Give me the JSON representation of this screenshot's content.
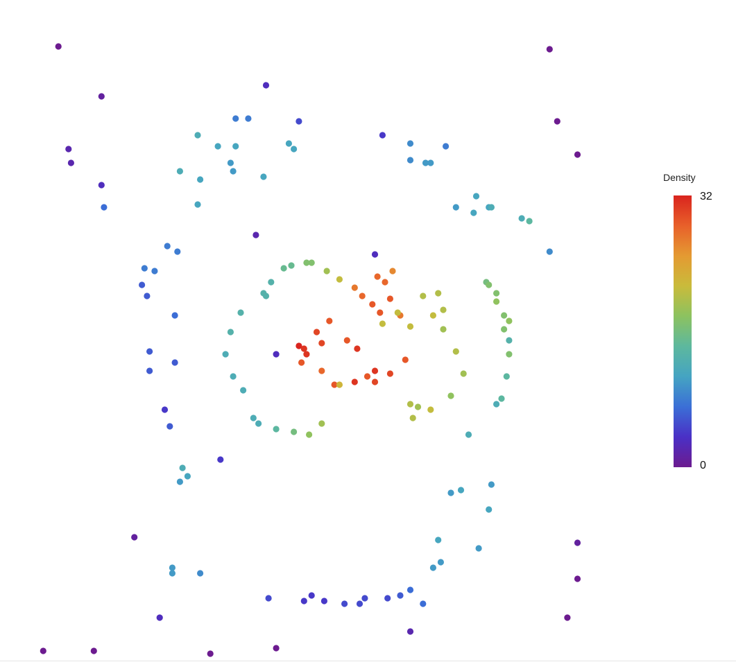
{
  "chart_data": {
    "type": "scatter",
    "title": "",
    "xlabel": "",
    "ylabel": "",
    "xlim": [
      -1.3,
      1.3
    ],
    "ylim": [
      -1.1,
      1.1
    ],
    "axes_visible": false,
    "grid": false,
    "color_by": "density",
    "colorbar": {
      "label": "Density",
      "min": 0,
      "max": 32,
      "min_label": "0",
      "max_label": "32",
      "placement": "right",
      "colors": [
        "#6c1b8f",
        "#4a30c6",
        "#3b6fd6",
        "#45a4c2",
        "#5db89e",
        "#8cc260",
        "#c9bb3b",
        "#e49a32",
        "#e8602a",
        "#d9241e"
      ]
    },
    "points": [
      {
        "x": -1.12,
        "y": 1.05,
        "d": 0
      },
      {
        "x": 0.82,
        "y": 1.04,
        "d": 0
      },
      {
        "x": -0.95,
        "y": 0.87,
        "d": 1
      },
      {
        "x": -0.3,
        "y": 0.91,
        "d": 3
      },
      {
        "x": 0.85,
        "y": 0.78,
        "d": 0
      },
      {
        "x": 0.93,
        "y": 0.66,
        "d": 0
      },
      {
        "x": -1.08,
        "y": 0.68,
        "d": 2
      },
      {
        "x": -1.07,
        "y": 0.63,
        "d": 2
      },
      {
        "x": -0.95,
        "y": 0.55,
        "d": 3
      },
      {
        "x": -0.94,
        "y": 0.47,
        "d": 7
      },
      {
        "x": -0.42,
        "y": 0.79,
        "d": 8
      },
      {
        "x": -0.37,
        "y": 0.79,
        "d": 8
      },
      {
        "x": -0.17,
        "y": 0.78,
        "d": 5
      },
      {
        "x": 0.16,
        "y": 0.73,
        "d": 4
      },
      {
        "x": 0.27,
        "y": 0.7,
        "d": 9
      },
      {
        "x": 0.41,
        "y": 0.69,
        "d": 8
      },
      {
        "x": -0.57,
        "y": 0.73,
        "d": 12
      },
      {
        "x": -0.49,
        "y": 0.69,
        "d": 11
      },
      {
        "x": -0.42,
        "y": 0.69,
        "d": 11
      },
      {
        "x": -0.19,
        "y": 0.68,
        "d": 11
      },
      {
        "x": -0.21,
        "y": 0.7,
        "d": 11
      },
      {
        "x": -0.64,
        "y": 0.6,
        "d": 12
      },
      {
        "x": -0.56,
        "y": 0.57,
        "d": 11
      },
      {
        "x": -0.31,
        "y": 0.58,
        "d": 11
      },
      {
        "x": -0.43,
        "y": 0.6,
        "d": 10
      },
      {
        "x": -0.57,
        "y": 0.48,
        "d": 11
      },
      {
        "x": -0.44,
        "y": 0.63,
        "d": 10
      },
      {
        "x": 0.27,
        "y": 0.64,
        "d": 9
      },
      {
        "x": 0.33,
        "y": 0.63,
        "d": 10
      },
      {
        "x": 0.35,
        "y": 0.63,
        "d": 10
      },
      {
        "x": 0.45,
        "y": 0.47,
        "d": 10
      },
      {
        "x": 0.52,
        "y": 0.45,
        "d": 11
      },
      {
        "x": 0.53,
        "y": 0.51,
        "d": 11
      },
      {
        "x": 0.58,
        "y": 0.47,
        "d": 11
      },
      {
        "x": 0.59,
        "y": 0.47,
        "d": 12
      },
      {
        "x": 0.71,
        "y": 0.43,
        "d": 12
      },
      {
        "x": 0.74,
        "y": 0.42,
        "d": 14
      },
      {
        "x": 0.82,
        "y": 0.31,
        "d": 9
      },
      {
        "x": -0.69,
        "y": 0.33,
        "d": 8
      },
      {
        "x": -0.65,
        "y": 0.31,
        "d": 8
      },
      {
        "x": -0.78,
        "y": 0.25,
        "d": 8
      },
      {
        "x": -0.74,
        "y": 0.24,
        "d": 8
      },
      {
        "x": -0.79,
        "y": 0.19,
        "d": 6
      },
      {
        "x": -0.77,
        "y": 0.15,
        "d": 6
      },
      {
        "x": -0.34,
        "y": 0.37,
        "d": 2
      },
      {
        "x": 0.13,
        "y": 0.3,
        "d": 3
      },
      {
        "x": -0.26,
        "y": -0.06,
        "d": 3
      },
      {
        "x": -0.66,
        "y": -0.09,
        "d": 6
      },
      {
        "x": -0.76,
        "y": -0.05,
        "d": 6
      },
      {
        "x": -0.66,
        "y": 0.08,
        "d": 7
      },
      {
        "x": 0.57,
        "y": 0.2,
        "d": 16
      },
      {
        "x": 0.58,
        "y": 0.19,
        "d": 17
      },
      {
        "x": 0.61,
        "y": 0.16,
        "d": 17
      },
      {
        "x": 0.61,
        "y": 0.13,
        "d": 18
      },
      {
        "x": 0.64,
        "y": 0.08,
        "d": 17
      },
      {
        "x": 0.66,
        "y": 0.06,
        "d": 18
      },
      {
        "x": 0.64,
        "y": 0.03,
        "d": 17
      },
      {
        "x": 0.66,
        "y": -0.06,
        "d": 17
      },
      {
        "x": 0.65,
        "y": -0.14,
        "d": 14
      },
      {
        "x": 0.63,
        "y": -0.22,
        "d": 14
      },
      {
        "x": 0.61,
        "y": -0.24,
        "d": 12
      },
      {
        "x": 0.5,
        "y": -0.35,
        "d": 12
      },
      {
        "x": 0.66,
        "y": -0.01,
        "d": 13
      },
      {
        "x": -0.76,
        "y": -0.12,
        "d": 6
      },
      {
        "x": -0.68,
        "y": -0.32,
        "d": 6
      },
      {
        "x": -0.7,
        "y": -0.26,
        "d": 4
      },
      {
        "x": -0.48,
        "y": -0.44,
        "d": 4
      },
      {
        "x": -0.63,
        "y": -0.47,
        "d": 12
      },
      {
        "x": -0.61,
        "y": -0.5,
        "d": 11
      },
      {
        "x": -0.64,
        "y": -0.52,
        "d": 10
      },
      {
        "x": 0.43,
        "y": -0.56,
        "d": 10
      },
      {
        "x": 0.47,
        "y": -0.55,
        "d": 11
      },
      {
        "x": 0.59,
        "y": -0.53,
        "d": 10
      },
      {
        "x": 0.58,
        "y": -0.62,
        "d": 11
      },
      {
        "x": 0.38,
        "y": -0.73,
        "d": 11
      },
      {
        "x": -0.82,
        "y": -0.72,
        "d": 1
      },
      {
        "x": 0.93,
        "y": -0.74,
        "d": 1
      },
      {
        "x": 0.93,
        "y": -0.87,
        "d": 0
      },
      {
        "x": -0.67,
        "y": -0.83,
        "d": 10
      },
      {
        "x": -0.67,
        "y": -0.85,
        "d": 10
      },
      {
        "x": -0.56,
        "y": -0.85,
        "d": 9
      },
      {
        "x": 0.39,
        "y": -0.81,
        "d": 10
      },
      {
        "x": 0.54,
        "y": -0.76,
        "d": 10
      },
      {
        "x": 0.36,
        "y": -0.83,
        "d": 10
      },
      {
        "x": -0.15,
        "y": -0.95,
        "d": 4
      },
      {
        "x": -0.07,
        "y": -0.95,
        "d": 4
      },
      {
        "x": 0.01,
        "y": -0.96,
        "d": 5
      },
      {
        "x": 0.07,
        "y": -0.96,
        "d": 5
      },
      {
        "x": 0.09,
        "y": -0.94,
        "d": 5
      },
      {
        "x": 0.18,
        "y": -0.94,
        "d": 5
      },
      {
        "x": 0.23,
        "y": -0.93,
        "d": 6
      },
      {
        "x": 0.27,
        "y": -0.91,
        "d": 7
      },
      {
        "x": 0.32,
        "y": -0.96,
        "d": 7
      },
      {
        "x": -0.29,
        "y": -0.94,
        "d": 5
      },
      {
        "x": -0.12,
        "y": -0.93,
        "d": 4
      },
      {
        "x": -0.72,
        "y": -1.01,
        "d": 3
      },
      {
        "x": 0.27,
        "y": -1.06,
        "d": 2
      },
      {
        "x": -1.18,
        "y": -1.13,
        "d": 0
      },
      {
        "x": -0.98,
        "y": -1.13,
        "d": 0
      },
      {
        "x": -0.52,
        "y": -1.14,
        "d": 0
      },
      {
        "x": -0.26,
        "y": -1.12,
        "d": 0
      },
      {
        "x": 0.89,
        "y": -1.01,
        "d": 0
      },
      {
        "x": -0.31,
        "y": 0.16,
        "d": 13
      },
      {
        "x": -0.28,
        "y": 0.2,
        "d": 13
      },
      {
        "x": -0.23,
        "y": 0.25,
        "d": 15
      },
      {
        "x": -0.2,
        "y": 0.26,
        "d": 15
      },
      {
        "x": -0.14,
        "y": 0.27,
        "d": 17
      },
      {
        "x": -0.12,
        "y": 0.27,
        "d": 17
      },
      {
        "x": -0.06,
        "y": 0.24,
        "d": 19
      },
      {
        "x": -0.01,
        "y": 0.21,
        "d": 21
      },
      {
        "x": 0.05,
        "y": 0.18,
        "d": 27
      },
      {
        "x": 0.08,
        "y": 0.15,
        "d": 28
      },
      {
        "x": 0.12,
        "y": 0.12,
        "d": 29
      },
      {
        "x": 0.15,
        "y": 0.09,
        "d": 29
      },
      {
        "x": 0.17,
        "y": 0.2,
        "d": 28
      },
      {
        "x": 0.14,
        "y": 0.22,
        "d": 28
      },
      {
        "x": 0.2,
        "y": 0.24,
        "d": 26
      },
      {
        "x": 0.23,
        "y": 0.08,
        "d": 27
      },
      {
        "x": 0.25,
        "y": -0.08,
        "d": 29
      },
      {
        "x": 0.19,
        "y": -0.13,
        "d": 30
      },
      {
        "x": 0.13,
        "y": -0.12,
        "d": 31
      },
      {
        "x": 0.13,
        "y": -0.16,
        "d": 30
      },
      {
        "x": 0.06,
        "y": -0.04,
        "d": 31
      },
      {
        "x": 0.02,
        "y": -0.01,
        "d": 29
      },
      {
        "x": -0.05,
        "y": 0.06,
        "d": 29
      },
      {
        "x": -0.08,
        "y": -0.02,
        "d": 30
      },
      {
        "x": -0.1,
        "y": 0.02,
        "d": 30
      },
      {
        "x": -0.14,
        "y": -0.06,
        "d": 31
      },
      {
        "x": -0.17,
        "y": -0.03,
        "d": 32
      },
      {
        "x": -0.15,
        "y": -0.04,
        "d": 31
      },
      {
        "x": -0.16,
        "y": -0.09,
        "d": 29
      },
      {
        "x": -0.08,
        "y": -0.12,
        "d": 28
      },
      {
        "x": -0.03,
        "y": -0.17,
        "d": 29
      },
      {
        "x": 0.05,
        "y": -0.16,
        "d": 31
      },
      {
        "x": 0.1,
        "y": -0.14,
        "d": 29
      },
      {
        "x": 0.19,
        "y": 0.14,
        "d": 29
      },
      {
        "x": 0.32,
        "y": 0.15,
        "d": 20
      },
      {
        "x": 0.36,
        "y": 0.08,
        "d": 21
      },
      {
        "x": 0.4,
        "y": 0.03,
        "d": 19
      },
      {
        "x": 0.45,
        "y": -0.05,
        "d": 20
      },
      {
        "x": 0.48,
        "y": -0.13,
        "d": 19
      },
      {
        "x": 0.43,
        "y": -0.21,
        "d": 18
      },
      {
        "x": 0.35,
        "y": -0.26,
        "d": 21
      },
      {
        "x": 0.28,
        "y": -0.29,
        "d": 20
      },
      {
        "x": 0.3,
        "y": -0.25,
        "d": 19
      },
      {
        "x": 0.27,
        "y": -0.24,
        "d": 20
      },
      {
        "x": 0.38,
        "y": 0.16,
        "d": 20
      },
      {
        "x": 0.4,
        "y": 0.1,
        "d": 20
      },
      {
        "x": 0.27,
        "y": 0.04,
        "d": 21
      },
      {
        "x": 0.22,
        "y": 0.09,
        "d": 21
      },
      {
        "x": 0.16,
        "y": 0.05,
        "d": 21
      },
      {
        "x": -0.3,
        "y": 0.15,
        "d": 13
      },
      {
        "x": -0.4,
        "y": 0.09,
        "d": 13
      },
      {
        "x": -0.44,
        "y": 0.02,
        "d": 13
      },
      {
        "x": -0.46,
        "y": -0.06,
        "d": 12
      },
      {
        "x": -0.43,
        "y": -0.14,
        "d": 12
      },
      {
        "x": -0.39,
        "y": -0.19,
        "d": 12
      },
      {
        "x": -0.35,
        "y": -0.29,
        "d": 12
      },
      {
        "x": -0.33,
        "y": -0.31,
        "d": 12
      },
      {
        "x": -0.26,
        "y": -0.33,
        "d": 14
      },
      {
        "x": -0.19,
        "y": -0.34,
        "d": 16
      },
      {
        "x": -0.13,
        "y": -0.35,
        "d": 18
      },
      {
        "x": -0.08,
        "y": -0.31,
        "d": 19
      },
      {
        "x": -0.01,
        "y": -0.17,
        "d": 22
      }
    ]
  }
}
